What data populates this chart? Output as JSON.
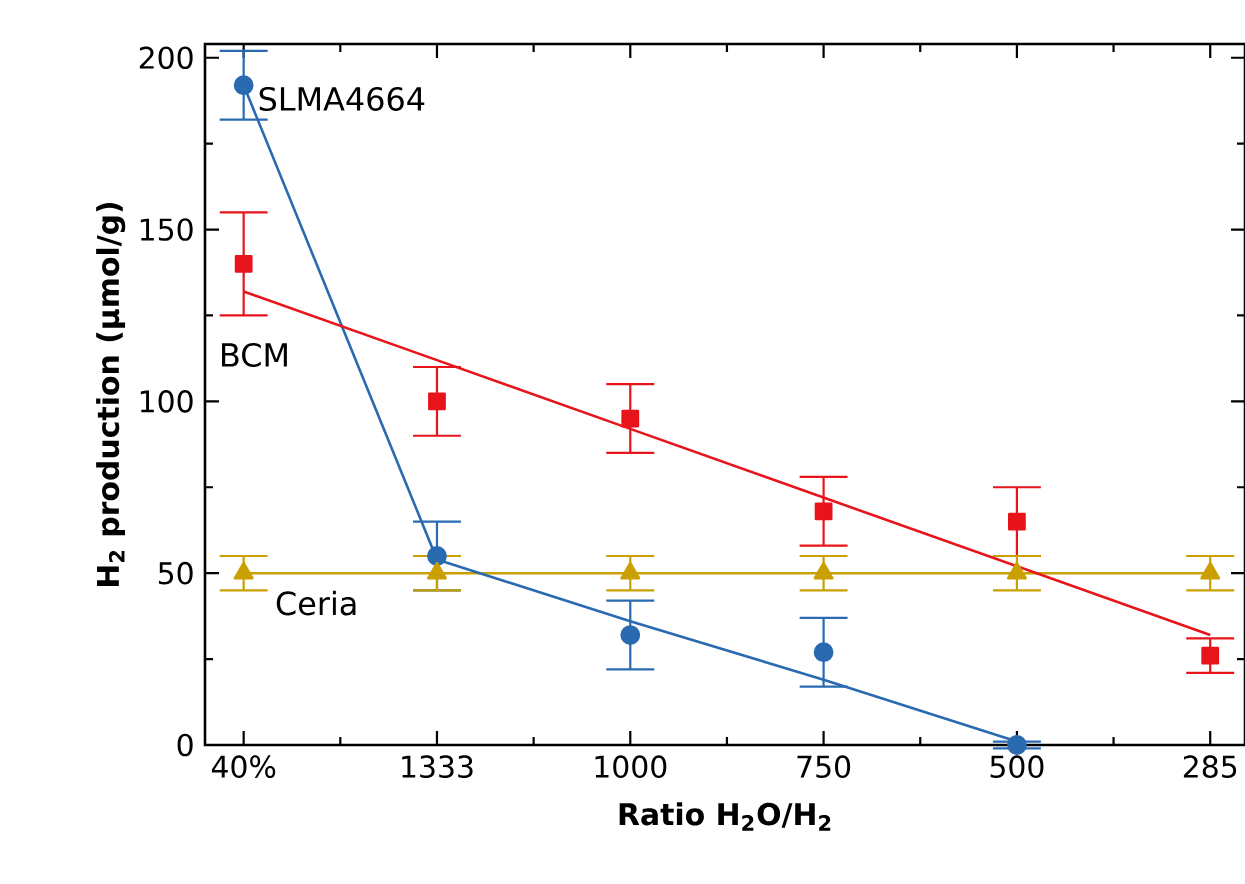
{
  "chart_data": {
    "type": "scatter",
    "xlabel": "Ratio H$_{2}$O/H$_{2}$",
    "ylabel": "H$_{2}$ production (µmol/g)",
    "categories": [
      "40%",
      "1333",
      "1000",
      "750",
      "500",
      "285"
    ],
    "legend": "left",
    "ylim": [
      0,
      204
    ],
    "yticks": [
      0,
      {
        "value": 25,
        "label": null
      },
      50,
      {
        "value": 75,
        "label": null
      },
      100,
      {
        "value": 125,
        "label": null
      },
      150,
      {
        "value": 175,
        "label": null
      },
      200
    ],
    "series": [
      {
        "name": "SLMA4664",
        "marker": "circle",
        "color": "#2a6ab0",
        "values": [
          192,
          55,
          32,
          27,
          0,
          null
        ],
        "errors": [
          10,
          10,
          10,
          10,
          1,
          null
        ]
      },
      {
        "name": "BCM",
        "marker": "square",
        "color": "#e8141b",
        "values": [
          140,
          100,
          95,
          68,
          65,
          26
        ],
        "errors": [
          15,
          10,
          10,
          10,
          10,
          5
        ]
      },
      {
        "name": "Ceria",
        "type": "line",
        "marker": "triangle",
        "color": "#c9a000",
        "values": [
          50,
          50,
          50,
          50,
          50,
          50
        ],
        "errors": [
          5,
          5,
          5,
          5,
          5,
          5
        ]
      },
      {
        "type": "line",
        "marker": "none",
        "color": "#2a6ab0",
        "values": [
          192,
          54,
          36,
          19,
          1,
          null
        ]
      },
      {
        "type": "line",
        "marker": "none",
        "color": "#e8141b",
        "values": [
          132,
          112,
          92,
          72,
          52,
          32
        ]
      }
    ]
  }
}
